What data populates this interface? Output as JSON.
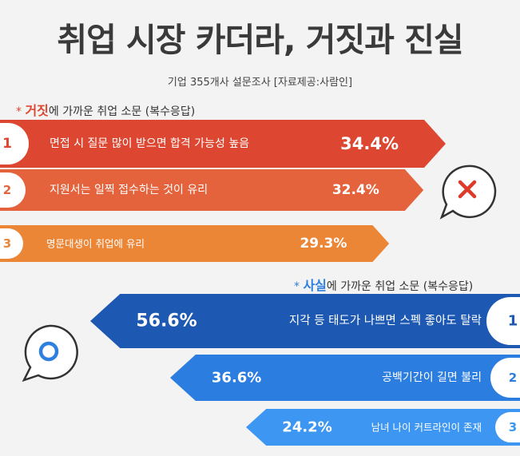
{
  "title": "취업 시장 카더라, 거짓과 진실",
  "subtitle": "기업 355개사 설문조사  [자료제공:사람인]",
  "false_section": {
    "prefix": "* ",
    "keyword": "거짓",
    "rest": "에 가까운 취업 소문 (복수응답)"
  },
  "true_section": {
    "prefix": "* ",
    "keyword": "사실",
    "rest": "에 가까운 취업 소문 (복수응답)"
  },
  "colors": {
    "false_bars": [
      "#dd4731",
      "#e5633c",
      "#ec8637"
    ],
    "true_bars": [
      "#1d59b2",
      "#2c7de0",
      "#3d96f2"
    ],
    "false_keyword": "#dd4731",
    "true_keyword": "#2d7fe0",
    "x_mark": "#dd3a2a",
    "o_mark": "#2d7fe0"
  },
  "icons": {
    "false": "x-mark-icon",
    "true": "o-mark-icon"
  },
  "chart_data": [
    {
      "type": "bar",
      "categories": [
        "면접 시 질문 많이 받으면 합격 가능성 높음",
        "지원서는 일찍 접수하는 것이 유리",
        "명문대생이 취업에 유리"
      ],
      "ranks": [
        "1",
        "2",
        "3"
      ],
      "values": [
        34.4,
        32.4,
        29.3
      ],
      "value_labels": [
        "34.4%",
        "32.4%",
        "29.3%"
      ],
      "unit": "%"
    },
    {
      "type": "bar",
      "categories": [
        "지각 등 태도가 나쁘면 스펙 좋아도 탈락",
        "공백기간이 길면 불리",
        "남녀 나이 커트라인이 존재"
      ],
      "ranks": [
        "1",
        "2",
        "3"
      ],
      "values": [
        56.6,
        36.6,
        24.2
      ],
      "value_labels": [
        "56.6%",
        "36.6%",
        "24.2%"
      ],
      "unit": "%"
    }
  ]
}
